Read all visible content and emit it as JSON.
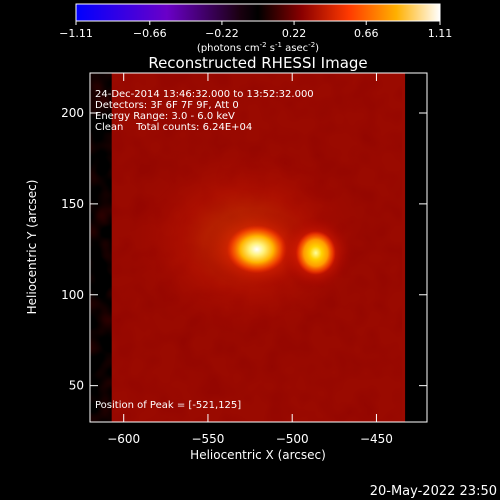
{
  "colorbar": {
    "ticks": [
      "-1.11",
      "-0.66",
      "-0.22",
      "0.22",
      "0.66",
      "1.11"
    ],
    "min": -1.11,
    "max": 1.11,
    "colormap": "red-temperature with negative blue-purple",
    "unit_main": "(photons cm",
    "unit_exp1": "-2",
    "unit_mid1": " s",
    "unit_exp2": "-1",
    "unit_mid2": " asec",
    "unit_exp3": "-2",
    "unit_end": ")"
  },
  "chart_data": {
    "type": "heatmap",
    "title": "Reconstructed RHESSI Image",
    "xlabel": "Heliocentric X (arcsec)",
    "ylabel": "Heliocentric Y (arcsec)",
    "xlim": [
      -620,
      -420
    ],
    "ylim": [
      30,
      222
    ],
    "xticks": [
      -600,
      -550,
      -500,
      -450
    ],
    "yticks": [
      50,
      100,
      150,
      200
    ],
    "xtick_labels": [
      "−600",
      "−550",
      "−500",
      "−450"
    ],
    "ytick_labels": [
      "50",
      "100",
      "150",
      "200"
    ],
    "image_extent_x": [
      -600,
      -433
    ],
    "image_extent_y": [
      30,
      222
    ],
    "sources": [
      {
        "x": -521,
        "y": 125,
        "peak": 1.0
      },
      {
        "x": -486,
        "y": 123,
        "peak": 0.92
      }
    ],
    "annotations": [
      "24-Dec-2014 13:46:32.000 to 13:52:32.000",
      "Detectors: 3F 6F 7F 9F, Att 0",
      "Energy Range: 3.0 - 6.0 keV",
      "Clean    Total counts: 6.24E+04"
    ],
    "peak_label": "Position of Peak = [-521,125]"
  },
  "footer": {
    "timestamp": "20-May-2022 23:50"
  }
}
